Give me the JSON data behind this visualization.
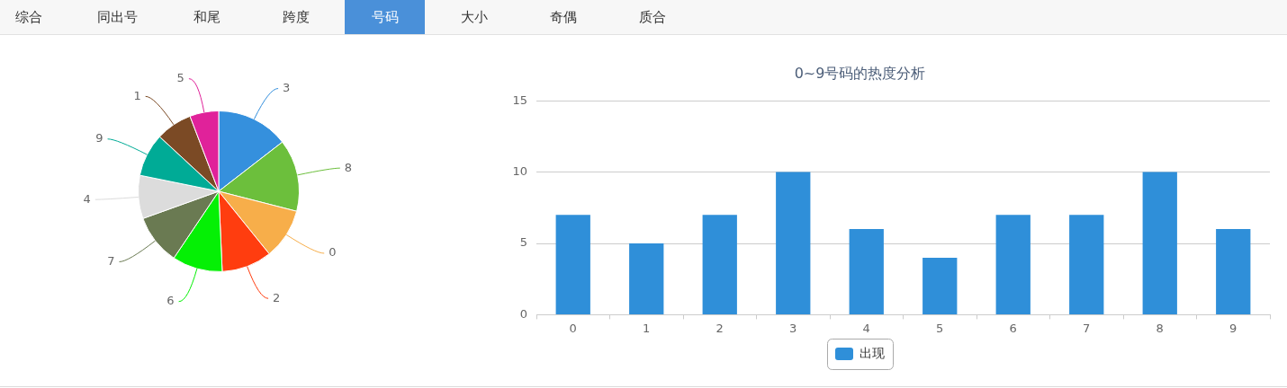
{
  "chart_data": [
    {
      "type": "other",
      "categories": [
        "综合",
        "同出号",
        "和尾",
        "跨度",
        "号码",
        "大小",
        "奇偶",
        "质合"
      ],
      "colors": [
        null,
        null,
        null,
        null,
        "#4a90d9",
        null,
        null,
        null
      ]
    },
    {
      "type": "pie",
      "categories": [
        "3",
        "8",
        "0",
        "2",
        "6",
        "7",
        "4",
        "9",
        "1",
        "5"
      ],
      "values": [
        14.5,
        14.5,
        10.2,
        10.1,
        10.1,
        10.1,
        8.7,
        8.7,
        7.3,
        5.8
      ],
      "colors": [
        "#3590dd",
        "#6cbf3c",
        "#f7ae4a",
        "#ff3d0f",
        "#05f005",
        "#6a7a52",
        "#dcdcdc",
        "#00ab96",
        "#7b4a25",
        "#e0229a"
      ]
    },
    {
      "type": "bar",
      "title": "0~9号码的热度分析",
      "categories": [
        "0",
        "1",
        "2",
        "3",
        "4",
        "5",
        "6",
        "7",
        "8",
        "9"
      ],
      "series": [
        {
          "name": "出现",
          "color": "#2f8fd9",
          "values": [
            7,
            5,
            7,
            10,
            6,
            4,
            7,
            7,
            10,
            6
          ]
        }
      ],
      "ylim": [
        0,
        15
      ],
      "yticks": [
        0,
        5,
        10,
        15
      ],
      "grid": "y",
      "legend": "bottom"
    }
  ]
}
